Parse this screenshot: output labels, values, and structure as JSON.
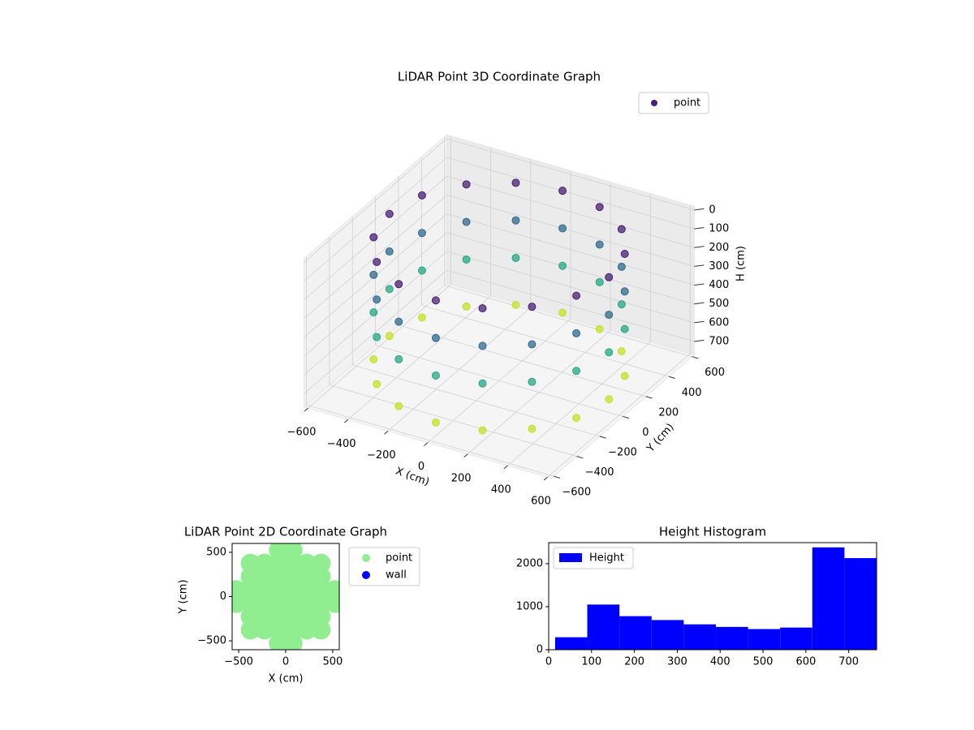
{
  "chart_data": [
    {
      "type": "scatter3d",
      "title": "LiDAR Point 3D Coordinate Graph",
      "xlabel": "X (cm)",
      "ylabel": "Y (cm)",
      "zlabel": "H (cm)",
      "xlim": [
        -620,
        620
      ],
      "ylim": [
        -620,
        620
      ],
      "zlim": [
        -20,
        770
      ],
      "zinvert": true,
      "xticks": [
        {
          "value": -600,
          "label": "−600"
        },
        {
          "value": -400,
          "label": "−400"
        },
        {
          "value": -200,
          "label": "−200"
        },
        0,
        200,
        400,
        600
      ],
      "yticks": [
        {
          "value": -600,
          "label": "−600"
        },
        {
          "value": -400,
          "label": "−400"
        },
        {
          "value": -200,
          "label": "−200"
        },
        0,
        200,
        400,
        600
      ],
      "zticks": [
        0,
        100,
        200,
        300,
        400,
        500,
        600,
        700
      ],
      "colormap": "viridis",
      "legend": "upper right",
      "series": [
        {
          "name": "point",
          "color": "#482173",
          "x": [
            550,
            508,
            389,
            210,
            0,
            -210,
            -389,
            -508,
            -550,
            -508,
            -389,
            -210,
            0,
            210,
            389,
            508,
            550,
            508,
            389,
            210,
            0,
            -210,
            -389,
            -508,
            -550,
            -508,
            -389,
            -210,
            0,
            210,
            389,
            508,
            550,
            508,
            389,
            210,
            0,
            -210,
            -389,
            -508,
            -550,
            -508,
            -389,
            -210,
            0,
            210,
            389,
            508,
            550,
            508,
            389,
            210,
            0,
            -210,
            -389,
            -508,
            -550,
            -508,
            -389,
            -210,
            0,
            210,
            389,
            508
          ],
          "y": [
            0,
            210,
            389,
            508,
            550,
            508,
            389,
            210,
            0,
            -210,
            -389,
            -508,
            -550,
            -508,
            -389,
            -210,
            0,
            210,
            389,
            508,
            550,
            508,
            389,
            210,
            0,
            -210,
            -389,
            -508,
            -550,
            -508,
            -389,
            -210,
            0,
            210,
            389,
            508,
            550,
            508,
            389,
            210,
            0,
            -210,
            -389,
            -508,
            -550,
            -508,
            -389,
            -210,
            0,
            210,
            389,
            508,
            550,
            508,
            389,
            210,
            0,
            -210,
            -389,
            -508,
            -550,
            -508,
            -389,
            -210
          ],
          "z": [
            50,
            50,
            50,
            50,
            50,
            50,
            50,
            50,
            50,
            50,
            50,
            50,
            50,
            50,
            50,
            50,
            250,
            250,
            250,
            250,
            250,
            250,
            250,
            250,
            250,
            250,
            250,
            250,
            250,
            250,
            250,
            250,
            450,
            450,
            450,
            450,
            450,
            450,
            450,
            450,
            450,
            450,
            450,
            450,
            450,
            450,
            450,
            450,
            700,
            700,
            700,
            700,
            700,
            700,
            700,
            700,
            700,
            700,
            700,
            700,
            700,
            700,
            700,
            700
          ]
        }
      ]
    },
    {
      "type": "scatter",
      "title": "LiDAR Point 2D Coordinate Graph",
      "xlabel": "X (cm)",
      "ylabel": "Y (cm)",
      "xlim": [
        -570,
        570
      ],
      "ylim": [
        -600,
        600
      ],
      "xticks": [
        {
          "value": -500,
          "label": "−500"
        },
        0,
        500
      ],
      "yticks": [
        {
          "value": -500,
          "label": "−500"
        },
        0,
        500
      ],
      "legend": "outside right",
      "series": [
        {
          "name": "point",
          "color": "#90ee90",
          "x": [
            75,
            75,
            75,
            75,
            225,
            225,
            225,
            375,
            375,
            375,
            525,
            -75,
            -75,
            -75,
            -75,
            -225,
            -225,
            -225,
            -375,
            -375,
            -375,
            -525,
            -75,
            -75,
            -75,
            -75,
            -225,
            -225,
            -225,
            -375,
            -375,
            -375,
            -525,
            75,
            75,
            75,
            75,
            225,
            225,
            225,
            375,
            375,
            375,
            525
          ],
          "y": [
            75,
            225,
            375,
            525,
            75,
            225,
            375,
            75,
            225,
            375,
            75,
            75,
            225,
            375,
            525,
            75,
            225,
            375,
            75,
            225,
            375,
            75,
            -75,
            -225,
            -375,
            -525,
            -75,
            -225,
            -375,
            -75,
            -225,
            -375,
            -75,
            -75,
            -225,
            -375,
            -525,
            -75,
            -225,
            -375,
            -75,
            -225,
            -375,
            -75
          ]
        },
        {
          "name": "wall",
          "color": "#0000ff",
          "x": [],
          "y": []
        }
      ]
    },
    {
      "type": "histogram",
      "title": "Height Histogram",
      "bins": [
        15,
        90,
        165,
        240,
        315,
        390,
        465,
        540,
        615,
        690,
        765
      ],
      "xlim": [
        0,
        765
      ],
      "ylim": [
        0,
        2490
      ],
      "xticks": [
        0,
        100,
        200,
        300,
        400,
        500,
        600,
        700
      ],
      "yticks": [
        0,
        1000,
        2000
      ],
      "legend": "upper left",
      "series": [
        {
          "name": "Height",
          "color": "#0000ff",
          "values": [
            290,
            1050,
            780,
            690,
            590,
            530,
            480,
            515,
            2380,
            2130
          ]
        }
      ]
    }
  ]
}
